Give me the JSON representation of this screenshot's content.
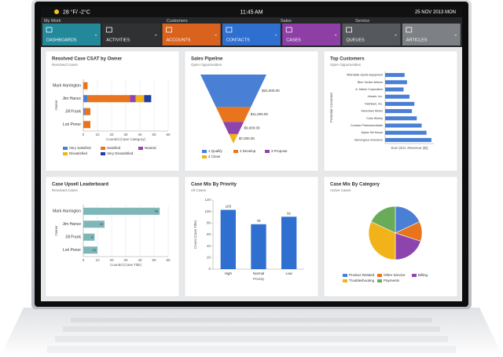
{
  "status_bar": {
    "weather": "28 °F/ -2°C",
    "time": "11:45 AM",
    "date": "25 NOV 2013 MON"
  },
  "nav": {
    "groups": [
      "My Work",
      "Customers",
      "Sales",
      "Service"
    ],
    "tiles": [
      {
        "label": "DASHBOARDS",
        "color": "#23889a"
      },
      {
        "label": "ACTIVITIES",
        "color": "#2f3133"
      },
      {
        "label": "ACCOUNTS",
        "color": "#d9621e"
      },
      {
        "label": "CONTACTS",
        "color": "#2e6fcf"
      },
      {
        "label": "CASES",
        "color": "#8e3fa6"
      },
      {
        "label": "QUEUES",
        "color": "#55585c"
      },
      {
        "label": "ARTICLES",
        "color": "#7d8084"
      }
    ]
  },
  "panels": [
    {
      "title": "Resolved Case CSAT by Owner",
      "subtitle": "Resolved Cases",
      "chart": {
        "type": "stacked-hbar",
        "categories": [
          "Mark Harrington",
          "Jim Hance",
          "Jill Frank",
          "Lori Penor"
        ],
        "series": [
          {
            "name": "Very Satisfied",
            "color": "#4a7fd6",
            "values": [
              0,
              3,
              1,
              0
            ]
          },
          {
            "name": "Satisfied",
            "color": "#e8741e",
            "values": [
              3,
              30,
              4,
              5
            ]
          },
          {
            "name": "Neutral",
            "color": "#8e44ad",
            "values": [
              0,
              4,
              0,
              0
            ]
          },
          {
            "name": "Dissatisfied",
            "color": "#f2b21a",
            "values": [
              0,
              6,
              0,
              0
            ]
          },
          {
            "name": "Very Dissatisfied",
            "color": "#1f3fa6",
            "values": [
              0,
              5,
              0,
              0
            ]
          }
        ],
        "xlim": [
          0,
          60
        ],
        "xticks": [
          0,
          10,
          20,
          30,
          40,
          50,
          60
        ],
        "x_label": "CountId (Case Category)",
        "y_label": "Owner"
      }
    },
    {
      "title": "Sales Pipeline",
      "subtitle": "Open Opportunities",
      "chart": {
        "type": "funnel",
        "categories": [
          "1 Qualify",
          "2 Develop",
          "3 Propose",
          "4 Close"
        ],
        "colors": [
          "#4a7fd6",
          "#e8741e",
          "#8e44ad",
          "#f2b21a"
        ],
        "values": [
          24000,
          11000,
          9000,
          7000
        ],
        "value_labels": [
          "$24,000.00",
          "$11,000.00",
          "$9,000.00",
          "$7,000.00"
        ]
      }
    },
    {
      "title": "Top Customers",
      "subtitle": "Open Opportunities",
      "chart": {
        "type": "hbar",
        "categories": [
          "Affordable Sports Equipment",
          "Blue Yonder Airlines",
          "A. Datum Corporation",
          "Litware, Inc.",
          "Fabrikam, Inc.",
          "Adventure Works",
          "Coho Winery",
          "Contoso Pharmaceuticals",
          "Alpine Ski House",
          "Humongous Insurance"
        ],
        "values": [
          40000,
          45000,
          38000,
          50000,
          60000,
          55000,
          65000,
          75000,
          85000,
          95000
        ],
        "color": "#4a7fd6",
        "xlim": [
          0,
          100000
        ],
        "x_label": "Sum (Est. Revenue ($))",
        "y_label": "Potential Customer"
      }
    },
    {
      "title": "Case Upsell Leaderboard",
      "subtitle": "Resolved Cases",
      "chart": {
        "type": "hbar",
        "categories": [
          "Mark Harrington",
          "Jim Hance",
          "Jill Frank",
          "Lori Penor"
        ],
        "values": [
          54,
          15,
          8,
          10
        ],
        "color": "#7fb7b9",
        "xlim": [
          0,
          60
        ],
        "xticks": [
          0,
          10,
          20,
          30,
          40,
          50,
          60
        ],
        "show_values": true,
        "x_label": "CountId (Case Title)",
        "y_label": "Owner"
      }
    },
    {
      "title": "Case Mix By Priority",
      "subtitle": "All Cases",
      "chart": {
        "type": "vbar",
        "categories": [
          "High",
          "Normal",
          "Low"
        ],
        "values": [
          103,
          78,
          91
        ],
        "color": "#2e6fcf",
        "ylim": [
          0,
          120
        ],
        "yticks": [
          0,
          20,
          40,
          60,
          80,
          100,
          120
        ],
        "x_label": "Priority",
        "y_label": "Count (Case Title)"
      }
    },
    {
      "title": "Case Mix By Category",
      "subtitle": "Active Cases",
      "chart": {
        "type": "pie",
        "categories": [
          "Product Related",
          "Other Service",
          "Billing",
          "Troubleshooting",
          "Payments"
        ],
        "colors": [
          "#4a7fd6",
          "#e8741e",
          "#8e44ad",
          "#f2b21a",
          "#6aab5a"
        ],
        "values": [
          18,
          12,
          20,
          32,
          18
        ]
      }
    }
  ]
}
